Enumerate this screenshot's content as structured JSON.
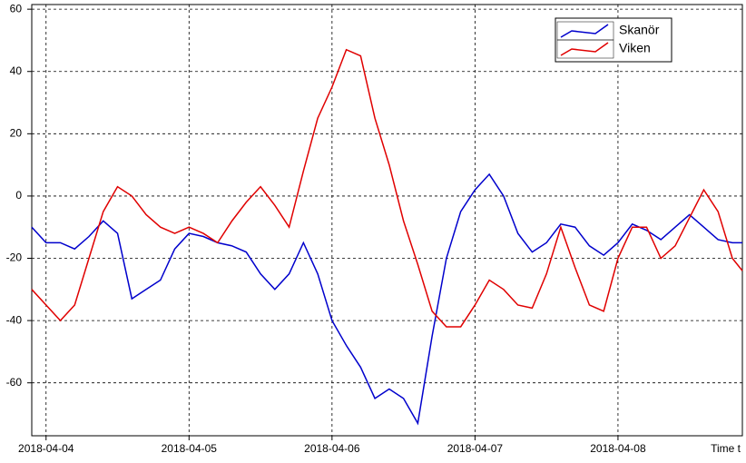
{
  "chart_data": {
    "type": "line",
    "x_label": "Time t",
    "x": [
      -0.1,
      0,
      0.1,
      0.2,
      0.3,
      0.4,
      0.5,
      0.6,
      0.7,
      0.8,
      0.9,
      1.0,
      1.1,
      1.2,
      1.3,
      1.4,
      1.5,
      1.6,
      1.7,
      1.8,
      1.9,
      2.0,
      2.1,
      2.2,
      2.3,
      2.4,
      2.5,
      2.6,
      2.7,
      2.8,
      2.9,
      3.0,
      3.1,
      3.2,
      3.3,
      3.4,
      3.5,
      3.6,
      3.7,
      3.8,
      3.9,
      4.0,
      4.1,
      4.2,
      4.3,
      4.4,
      4.5,
      4.6,
      4.7,
      4.8,
      4.87
    ],
    "series": [
      {
        "name": "Skanör",
        "color": "#0000cc",
        "values": [
          -10,
          -15,
          -15,
          -17,
          -13,
          -8,
          -12,
          -33,
          -30,
          -27,
          -17,
          -12,
          -13,
          -15,
          -16,
          -18,
          -25,
          -30,
          -25,
          -15,
          -25,
          -40,
          -48,
          -55,
          -65,
          -62,
          -65,
          -73,
          -45,
          -20,
          -5,
          2,
          7,
          0,
          -12,
          -18,
          -15,
          -9,
          -10,
          -16,
          -19,
          -15,
          -9,
          -11,
          -14,
          -10,
          -6,
          -10,
          -14,
          -15,
          -15
        ]
      },
      {
        "name": "Viken",
        "color": "#e00000",
        "values": [
          -30,
          -35,
          -40,
          -35,
          -20,
          -5,
          3,
          0,
          -6,
          -10,
          -12,
          -10,
          -12,
          -15,
          -8,
          -2,
          3,
          -3,
          -10,
          8,
          25,
          35,
          47,
          45,
          25,
          10,
          -8,
          -22,
          -37,
          -42,
          -42,
          -35,
          -27,
          -30,
          -35,
          -36,
          -25,
          -10,
          -23,
          -35,
          -37,
          -20,
          -10,
          -10,
          -20,
          -16,
          -7,
          2,
          -5,
          -20,
          -24
        ]
      }
    ],
    "xlim": [
      -0.1,
      4.87
    ],
    "xticks": [
      {
        "value": 0,
        "label": "2018-04-04"
      },
      {
        "value": 1,
        "label": "2018-04-05"
      },
      {
        "value": 2,
        "label": "2018-04-06"
      },
      {
        "value": 3,
        "label": "2018-04-07"
      },
      {
        "value": 4,
        "label": "2018-04-08"
      }
    ],
    "ylim": [
      -77,
      61.5
    ],
    "yticks": [
      -60,
      -40,
      -20,
      0,
      20,
      40,
      60
    ],
    "grid": true,
    "legend": "top-right"
  }
}
